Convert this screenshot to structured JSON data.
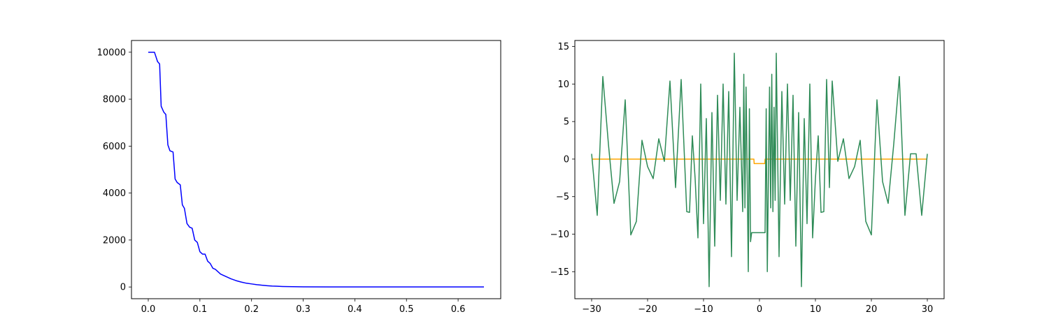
{
  "chart_data": [
    {
      "type": "line",
      "title": "",
      "xlabel": "",
      "ylabel": "",
      "xlim": [
        -0.0325,
        0.6825
      ],
      "ylim": [
        -500,
        10500
      ],
      "xticks": [
        0.0,
        0.1,
        0.2,
        0.3,
        0.4,
        0.5,
        0.6
      ],
      "xtick_labels": [
        "0.0",
        "0.1",
        "0.2",
        "0.3",
        "0.4",
        "0.5",
        "0.6"
      ],
      "yticks": [
        0,
        2000,
        4000,
        6000,
        8000,
        10000
      ],
      "ytick_labels": [
        "0",
        "2000",
        "4000",
        "6000",
        "8000",
        "10000"
      ],
      "grid": false,
      "series": [
        {
          "color": "#0000ff",
          "x": [
            0.0,
            0.012,
            0.018,
            0.022,
            0.025,
            0.03,
            0.034,
            0.038,
            0.042,
            0.048,
            0.052,
            0.056,
            0.062,
            0.066,
            0.07,
            0.075,
            0.08,
            0.085,
            0.09,
            0.095,
            0.1,
            0.105,
            0.11,
            0.115,
            0.12,
            0.125,
            0.13,
            0.14,
            0.15,
            0.16,
            0.17,
            0.18,
            0.19,
            0.2,
            0.21,
            0.22,
            0.23,
            0.24,
            0.25,
            0.26,
            0.28,
            0.3,
            0.35,
            0.4,
            0.45,
            0.5,
            0.55,
            0.6,
            0.65
          ],
          "y": [
            10000,
            10000,
            9600,
            9500,
            7700,
            7450,
            7350,
            6050,
            5800,
            5750,
            4600,
            4450,
            4350,
            3500,
            3350,
            2700,
            2550,
            2500,
            2000,
            1900,
            1500,
            1400,
            1400,
            1100,
            1000,
            800,
            750,
            550,
            450,
            350,
            270,
            210,
            160,
            130,
            100,
            75,
            55,
            40,
            30,
            22,
            12,
            6,
            2,
            1,
            0,
            0,
            0,
            0,
            0
          ]
        }
      ]
    },
    {
      "type": "line",
      "title": "",
      "xlabel": "",
      "ylabel": "",
      "xlim": [
        -33,
        33
      ],
      "ylim": [
        -18.6,
        15.8
      ],
      "xticks": [
        -30,
        -20,
        -10,
        0,
        10,
        20,
        30
      ],
      "xtick_labels": [
        "−30",
        "−20",
        "−10",
        "0",
        "10",
        "20",
        "30"
      ],
      "yticks": [
        -15,
        -10,
        -5,
        0,
        5,
        10,
        15
      ],
      "ytick_labels": [
        "−15",
        "−10",
        "−5",
        "0",
        "5",
        "10",
        "15"
      ],
      "grid": false,
      "series": [
        {
          "color": "#ffa500",
          "x": [
            -30,
            -1.0,
            -0.95,
            0.95,
            1.0,
            30
          ],
          "y": [
            0.0,
            0.0,
            -0.6,
            -0.6,
            0.0,
            0.0
          ]
        },
        {
          "color": "#2e8b57",
          "x": [
            -30.0,
            -29.0,
            -28.0,
            -27.0,
            -26.0,
            -25.0,
            -24.0,
            -23.0,
            -22.0,
            -21.0,
            -20.0,
            -19.0,
            -18.0,
            -17.0,
            -16.0,
            -15.0,
            -14.0,
            -13.0,
            -12.5,
            -12.0,
            -11.5,
            -11.0,
            -10.5,
            -10.0,
            -9.5,
            -9.0,
            -8.5,
            -8.0,
            -7.5,
            -7.0,
            -6.5,
            -6.0,
            -5.5,
            -5.0,
            -4.5,
            -4.0,
            -3.5,
            -3.0,
            -2.8,
            -2.6,
            -2.4,
            -2.2,
            -2.0,
            -1.8,
            -1.6,
            -1.4,
            -1.2,
            -1.0,
            1.0,
            1.2,
            1.4,
            1.6,
            1.8,
            2.0,
            2.2,
            2.4,
            2.6,
            2.8,
            3.0,
            3.5,
            4.0,
            4.5,
            5.0,
            5.5,
            6.0,
            6.5,
            7.0,
            7.5,
            8.0,
            8.5,
            9.0,
            9.5,
            10.0,
            10.5,
            11.0,
            11.5,
            12.0,
            12.5,
            13.0,
            14.0,
            15.0,
            16.0,
            17.0,
            18.0,
            19.0,
            20.0,
            21.0,
            22.0,
            23.0,
            24.0,
            25.0,
            26.0,
            27.0,
            28.0,
            29.0,
            30.0
          ],
          "y": [
            0.7,
            -7.5,
            11.0,
            2.0,
            -5.9,
            -3.0,
            7.9,
            -10.1,
            -8.3,
            2.5,
            -1.0,
            -2.6,
            2.7,
            -0.3,
            10.4,
            -3.8,
            10.6,
            -7.0,
            -7.1,
            3.1,
            -2.6,
            -10.5,
            10.0,
            -8.6,
            5.4,
            -17.0,
            6.2,
            -11.6,
            8.5,
            -5.5,
            10.0,
            -6.0,
            9.0,
            -13.0,
            14.1,
            -5.5,
            6.9,
            -7.0,
            11.3,
            -6.5,
            9.6,
            -2.0,
            -15.0,
            6.7,
            -11.0,
            -9.8,
            -9.8,
            -9.8,
            -9.8,
            6.7,
            -15.0,
            -2.0,
            9.6,
            -6.5,
            11.3,
            -7.0,
            6.9,
            -5.5,
            14.1,
            -13.0,
            9.0,
            -6.0,
            10.0,
            -5.5,
            8.5,
            -11.6,
            6.2,
            -17.0,
            5.4,
            -8.6,
            10.0,
            -10.5,
            -2.6,
            3.1,
            -7.1,
            -7.0,
            10.6,
            -3.8,
            10.4,
            -0.3,
            2.7,
            -2.6,
            -1.0,
            2.5,
            -8.3,
            -10.1,
            7.9,
            -3.0,
            -5.9,
            2.0,
            11.0,
            -7.5,
            0.7,
            0.7,
            -7.5,
            0.7
          ]
        }
      ]
    }
  ]
}
